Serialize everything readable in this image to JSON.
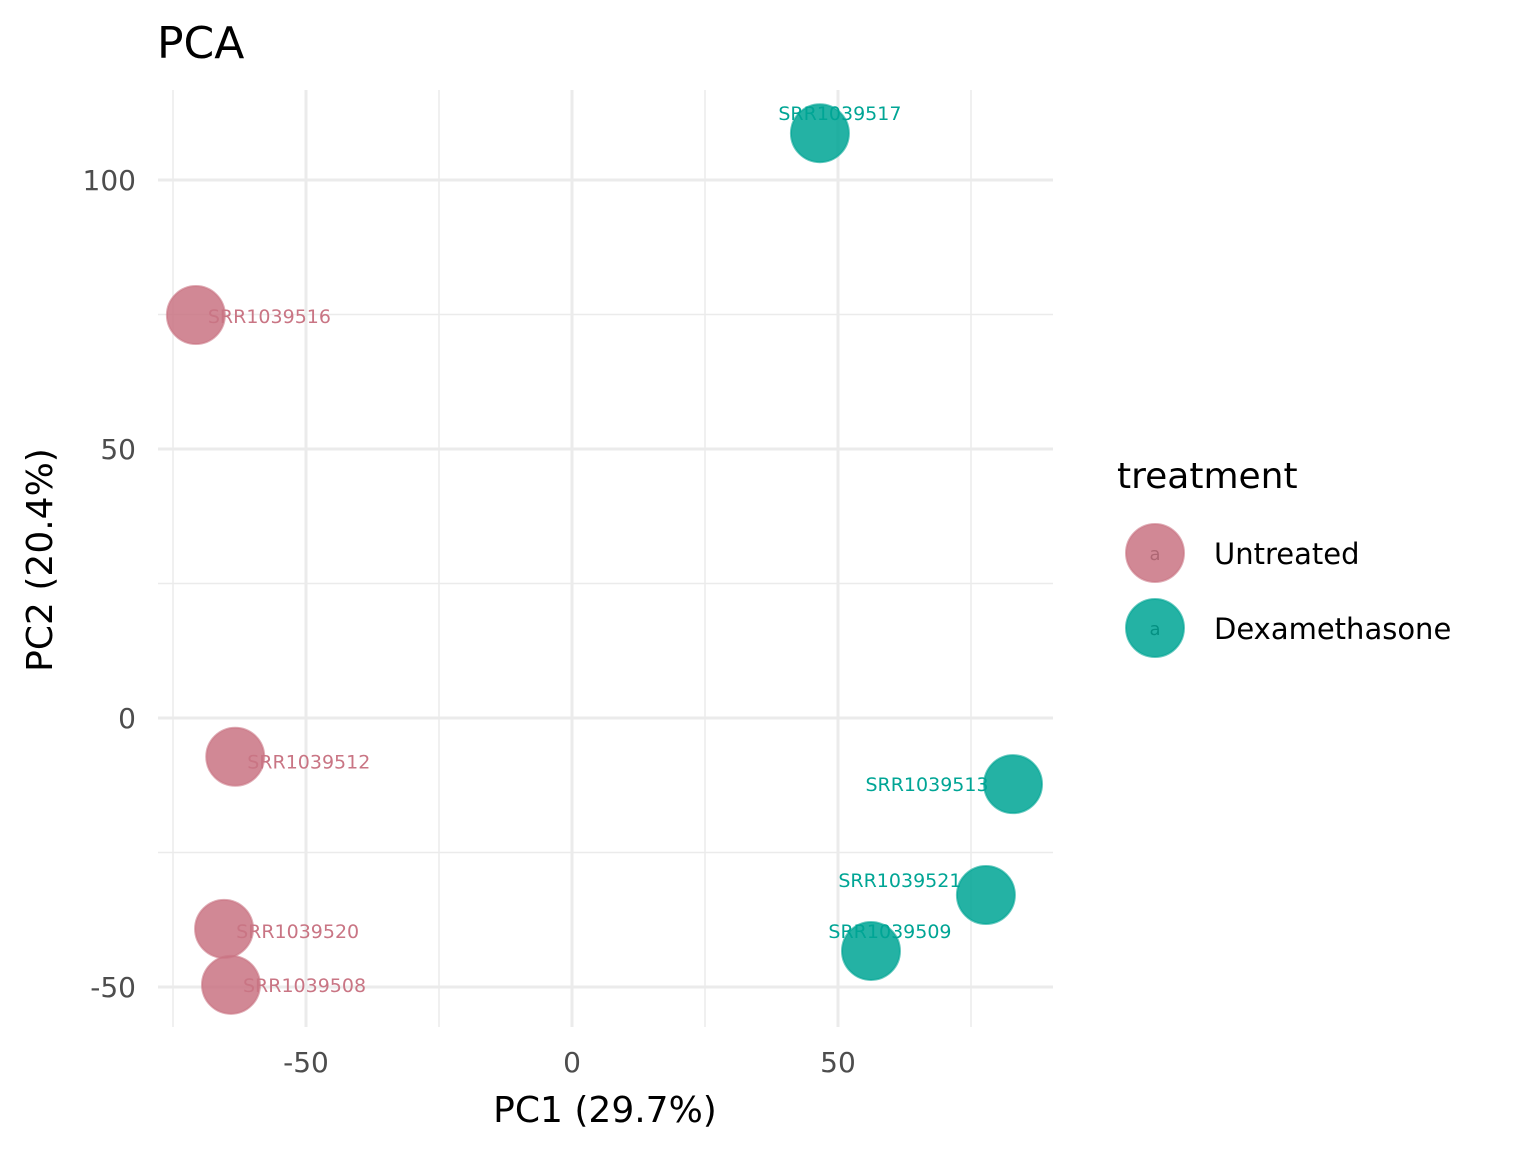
{
  "chart_data": {
    "type": "scatter",
    "title": "PCA",
    "xlabel": "PC1 (29.7%)",
    "ylabel": "PC2 (20.4%)",
    "xlim": [
      -77,
      91
    ],
    "ylim": [
      -58,
      117
    ],
    "x_ticks": [
      -50,
      0,
      50
    ],
    "x_tick_labels": [
      "-50",
      "0",
      "50"
    ],
    "y_ticks": [
      -50,
      0,
      50,
      100
    ],
    "y_tick_labels": [
      "-50",
      "0",
      "50",
      "100"
    ],
    "grid": true,
    "legend": {
      "title": "treatment",
      "position": "right",
      "key_glyph": "a",
      "entries": [
        {
          "label": "Untreated",
          "color": "#C97584"
        },
        {
          "label": "Dexamethasone",
          "color": "#00A595"
        }
      ]
    },
    "series": [
      {
        "name": "Untreated",
        "color": "#C97584",
        "points": [
          {
            "label": "SRR1039516",
            "x": -70.7,
            "y": 74.9
          },
          {
            "label": "SRR1039512",
            "x": -63.3,
            "y": -7.2
          },
          {
            "label": "SRR1039520",
            "x": -65.4,
            "y": -39.2
          },
          {
            "label": "SRR1039508",
            "x": -64.1,
            "y": -49.6
          }
        ]
      },
      {
        "name": "Dexamethasone",
        "color": "#00A595",
        "points": [
          {
            "label": "SRR1039517",
            "x": 46.6,
            "y": 108.7
          },
          {
            "label": "SRR1039513",
            "x": 82.9,
            "y": -12.3
          },
          {
            "label": "SRR1039521",
            "x": 77.8,
            "y": -32.9
          },
          {
            "label": "SRR1039509",
            "x": 56.2,
            "y": -43.3
          }
        ]
      }
    ]
  }
}
